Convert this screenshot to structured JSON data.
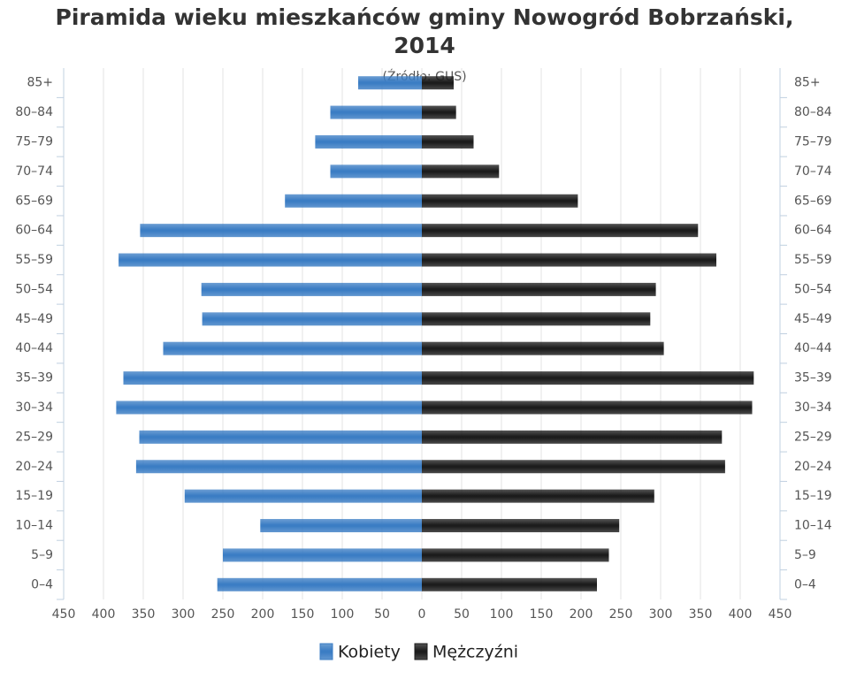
{
  "chart_data": {
    "type": "bar",
    "orientation": "horizontal",
    "stacked": "overlap",
    "title": "Piramida wieku mieszkańców gminy Nowogród Bobrzański, 2014",
    "subtitle": "(Źródło: GUS)",
    "categories": [
      "0–4",
      "5–9",
      "10–14",
      "15–19",
      "20–24",
      "25–29",
      "30–34",
      "35–39",
      "40–44",
      "45–49",
      "50–54",
      "55–59",
      "60–64",
      "65–69",
      "70–74",
      "75–79",
      "80–84",
      "85+"
    ],
    "series": [
      {
        "name": "Kobiety",
        "color": "#3b7dc4",
        "values": [
          -257,
          -250,
          -203,
          -298,
          -359,
          -355,
          -384,
          -375,
          -325,
          -276,
          -277,
          -381,
          -354,
          -172,
          -115,
          -134,
          -115,
          -80
        ]
      },
      {
        "name": "Mężczyźni",
        "color": "#1c1c1c",
        "values": [
          220,
          235,
          248,
          292,
          381,
          377,
          415,
          417,
          304,
          287,
          294,
          370,
          347,
          196,
          97,
          65,
          43,
          40
        ]
      }
    ],
    "xlim": [
      -450,
      450
    ],
    "xticks": [
      {
        "value": -450,
        "label": "450"
      },
      {
        "value": -400,
        "label": "400"
      },
      {
        "value": -350,
        "label": "350"
      },
      {
        "value": -300,
        "label": "300"
      },
      {
        "value": -250,
        "label": "250"
      },
      {
        "value": -200,
        "label": "200"
      },
      {
        "value": -150,
        "label": "150"
      },
      {
        "value": -100,
        "label": "100"
      },
      {
        "value": -50,
        "label": "50"
      },
      0,
      50,
      100,
      150,
      200,
      250,
      300,
      350,
      400,
      450
    ],
    "grid": true,
    "legend": "bottom"
  }
}
